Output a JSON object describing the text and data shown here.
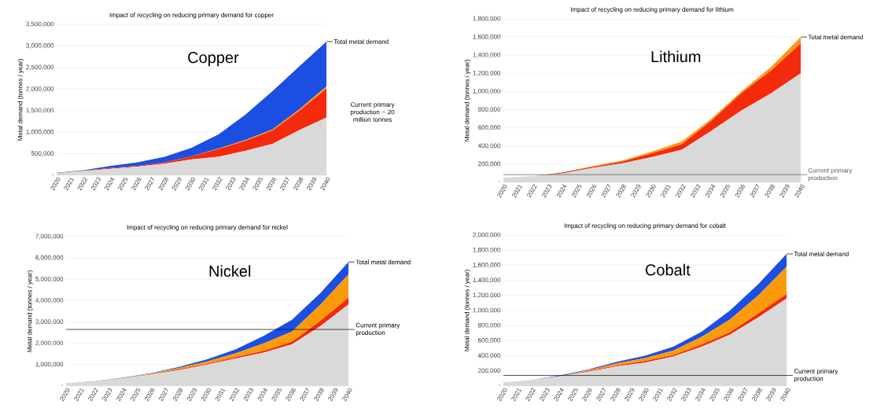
{
  "chart_data": [
    {
      "type": "area",
      "title": "Impact of recycling on reducing primary demand for copper",
      "subtitle": "Copper",
      "ylabel": "Metal demand (tonnes / year)",
      "stacked": true,
      "grid": "y",
      "x": [
        2020,
        2022,
        2024,
        2026,
        2028,
        2030,
        2032,
        2034,
        2036,
        2038,
        2040
      ],
      "xlim": [
        2020,
        2040
      ],
      "xticks": [
        2020,
        2021,
        2022,
        2023,
        2024,
        2025,
        2026,
        2027,
        2028,
        2029,
        2030,
        2031,
        2032,
        2033,
        2034,
        2035,
        2036,
        2037,
        2038,
        2039,
        2040
      ],
      "ylim": [
        0,
        3500000
      ],
      "yticks": [
        {
          "value": 0,
          "label": "-"
        },
        {
          "value": 500000,
          "label": "500,000"
        },
        {
          "value": 1000000,
          "label": "1,000,000"
        },
        {
          "value": 1500000,
          "label": "1,500,000"
        },
        {
          "value": 2000000,
          "label": "2,000,000"
        },
        {
          "value": 2500000,
          "label": "2,500,000"
        },
        {
          "value": 3000000,
          "label": "3,000,000"
        },
        {
          "value": 3500000,
          "label": "3,500,000"
        }
      ],
      "series": [
        {
          "color": "#d9d9d9",
          "values": [
            50000,
            100000,
            150000,
            200000,
            270000,
            370000,
            430000,
            570000,
            730000,
            1050000,
            1340000
          ]
        },
        {
          "color": "#f42a0c",
          "values": [
            0,
            10000,
            20000,
            20000,
            30000,
            70000,
            180000,
            230000,
            310000,
            450000,
            670000
          ]
        },
        {
          "color": "#fb9a0a",
          "values": [
            0,
            0,
            0,
            0,
            0,
            0,
            10000,
            20000,
            20000,
            30000,
            50000
          ]
        },
        {
          "color": "#1b4fe3",
          "values": [
            10000,
            10000,
            50000,
            80000,
            130000,
            200000,
            330000,
            590000,
            890000,
            1000000,
            1040000
          ]
        }
      ],
      "annotations": [
        "Total metal demand",
        "Current primary production ~ 20 million tonnes"
      ]
    },
    {
      "type": "area",
      "title": "Impact of recycling on reducing primary demand for lithium",
      "subtitle": "Lithium",
      "ylabel": "Metal demand (tonnes / year)",
      "stacked": true,
      "grid": "y",
      "x": [
        2020,
        2022,
        2024,
        2026,
        2028,
        2030,
        2032,
        2034,
        2036,
        2038,
        2040
      ],
      "xlim": [
        2020,
        2040
      ],
      "xticks": [
        2020,
        2021,
        2022,
        2023,
        2024,
        2025,
        2026,
        2027,
        2028,
        2029,
        2030,
        2031,
        2032,
        2033,
        2034,
        2035,
        2036,
        2037,
        2038,
        2039,
        2040
      ],
      "ylim": [
        0,
        1800000
      ],
      "yticks": [
        {
          "value": 0,
          "label": "-"
        },
        {
          "value": 200000,
          "label": "200,000"
        },
        {
          "value": 400000,
          "label": "400,000"
        },
        {
          "value": 600000,
          "label": "600,000"
        },
        {
          "value": 800000,
          "label": "800,000"
        },
        {
          "value": 1000000,
          "label": "1,000,000"
        },
        {
          "value": 1200000,
          "label": "1,200,000"
        },
        {
          "value": 1400000,
          "label": "1,400,000"
        },
        {
          "value": 1600000,
          "label": "1,600,000"
        },
        {
          "value": 1800000,
          "label": "1,800,000"
        }
      ],
      "series": [
        {
          "color": "#d9d9d9",
          "values": [
            50000,
            70000,
            100000,
            160000,
            210000,
            280000,
            360000,
            570000,
            790000,
            980000,
            1200000
          ]
        },
        {
          "color": "#f42a0c",
          "values": [
            0,
            0,
            10000,
            10000,
            20000,
            40000,
            60000,
            110000,
            190000,
            250000,
            330000
          ]
        },
        {
          "color": "#fb9a0a",
          "values": [
            0,
            0,
            0,
            10000,
            10000,
            20000,
            30000,
            20000,
            20000,
            40000,
            70000
          ]
        }
      ],
      "ref_lines": [
        {
          "axis": "y",
          "value": 85000,
          "label": "Current primary production",
          "color": "#555555"
        }
      ],
      "annotations": [
        "Total metal demand"
      ]
    },
    {
      "type": "area",
      "title": "Impact of recycling on reducing primary demand for nickel",
      "subtitle": "Nickel",
      "ylabel": "Metal demand (tonnes / year)",
      "stacked": true,
      "grid": "y",
      "x": [
        2020,
        2022,
        2024,
        2026,
        2028,
        2030,
        2032,
        2034,
        2036,
        2038,
        2040
      ],
      "xlim": [
        2020,
        2040
      ],
      "xticks": [
        2020,
        2021,
        2022,
        2023,
        2024,
        2025,
        2026,
        2027,
        2028,
        2029,
        2030,
        2031,
        2032,
        2033,
        2034,
        2035,
        2036,
        2037,
        2038,
        2039,
        2040
      ],
      "ylim": [
        0,
        7000000
      ],
      "yticks": [
        {
          "value": 0,
          "label": "-"
        },
        {
          "value": 1000000,
          "label": "1,000,000"
        },
        {
          "value": 2000000,
          "label": "2,000,000"
        },
        {
          "value": 3000000,
          "label": "3,000,000"
        },
        {
          "value": 4000000,
          "label": "4,000,000"
        },
        {
          "value": 5000000,
          "label": "5,000,000"
        },
        {
          "value": 6000000,
          "label": "6,000,000"
        },
        {
          "value": 7000000,
          "label": "7,000,000"
        }
      ],
      "series": [
        {
          "color": "#d9d9d9",
          "values": [
            110000,
            210000,
            360000,
            530000,
            750000,
            1000000,
            1290000,
            1570000,
            1950000,
            2800000,
            3820000
          ]
        },
        {
          "color": "#f42a0c",
          "values": [
            0,
            0,
            0,
            20000,
            30000,
            40000,
            60000,
            80000,
            120000,
            250000,
            320000
          ]
        },
        {
          "color": "#fb9a0a",
          "values": [
            0,
            0,
            10000,
            30000,
            70000,
            110000,
            180000,
            350000,
            480000,
            750000,
            1090000
          ]
        },
        {
          "color": "#1b4fe3",
          "values": [
            10000,
            10000,
            20000,
            20000,
            40000,
            100000,
            180000,
            350000,
            550000,
            550000,
            580000
          ]
        }
      ],
      "ref_lines": [
        {
          "axis": "y",
          "value": 2650000,
          "label": "Current primary production",
          "color": "#000000"
        }
      ],
      "annotations": [
        "Total metal demand"
      ]
    },
    {
      "type": "area",
      "title": "Impact of recycling on reducing primary demand for cobalt",
      "subtitle": "Cobalt",
      "ylabel": "Metal demand (tonnes / year)",
      "stacked": true,
      "grid": "y",
      "x": [
        2020,
        2022,
        2024,
        2026,
        2028,
        2030,
        2032,
        2034,
        2036,
        2038,
        2040
      ],
      "xlim": [
        2020,
        2040
      ],
      "xticks": [
        2020,
        2021,
        2022,
        2023,
        2024,
        2025,
        2026,
        2027,
        2028,
        2029,
        2030,
        2031,
        2032,
        2033,
        2034,
        2035,
        2036,
        2037,
        2038,
        2039,
        2040
      ],
      "ylim": [
        0,
        2000000
      ],
      "yticks": [
        {
          "value": 0,
          "label": "-"
        },
        {
          "value": 200000,
          "label": "200,000"
        },
        {
          "value": 400000,
          "label": "400,000"
        },
        {
          "value": 600000,
          "label": "600,000"
        },
        {
          "value": 800000,
          "label": "800,000"
        },
        {
          "value": 1000000,
          "label": "1,000,000"
        },
        {
          "value": 1200000,
          "label": "1,200,000"
        },
        {
          "value": 1400000,
          "label": "1,400,000"
        },
        {
          "value": 1600000,
          "label": "1,600,000"
        },
        {
          "value": 1800000,
          "label": "1,800,000"
        },
        {
          "value": 2000000,
          "label": "2,000,000"
        }
      ],
      "series": [
        {
          "color": "#d9d9d9",
          "values": [
            50000,
            80000,
            130000,
            190000,
            260000,
            310000,
            390000,
            520000,
            680000,
            910000,
            1160000
          ]
        },
        {
          "color": "#f42a0c",
          "values": [
            0,
            0,
            0,
            10000,
            10000,
            20000,
            20000,
            30000,
            30000,
            50000,
            60000
          ]
        },
        {
          "color": "#fb9a0a",
          "values": [
            0,
            0,
            0,
            10000,
            30000,
            40000,
            60000,
            100000,
            170000,
            240000,
            360000
          ]
        },
        {
          "color": "#1b4fe3",
          "values": [
            0,
            0,
            10000,
            10000,
            20000,
            30000,
            50000,
            70000,
            120000,
            150000,
            170000
          ]
        }
      ],
      "ref_lines": [
        {
          "axis": "y",
          "value": 140000,
          "label": "Current primary production",
          "color": "#000000"
        }
      ],
      "annotations": [
        "Total metal demand"
      ]
    }
  ]
}
